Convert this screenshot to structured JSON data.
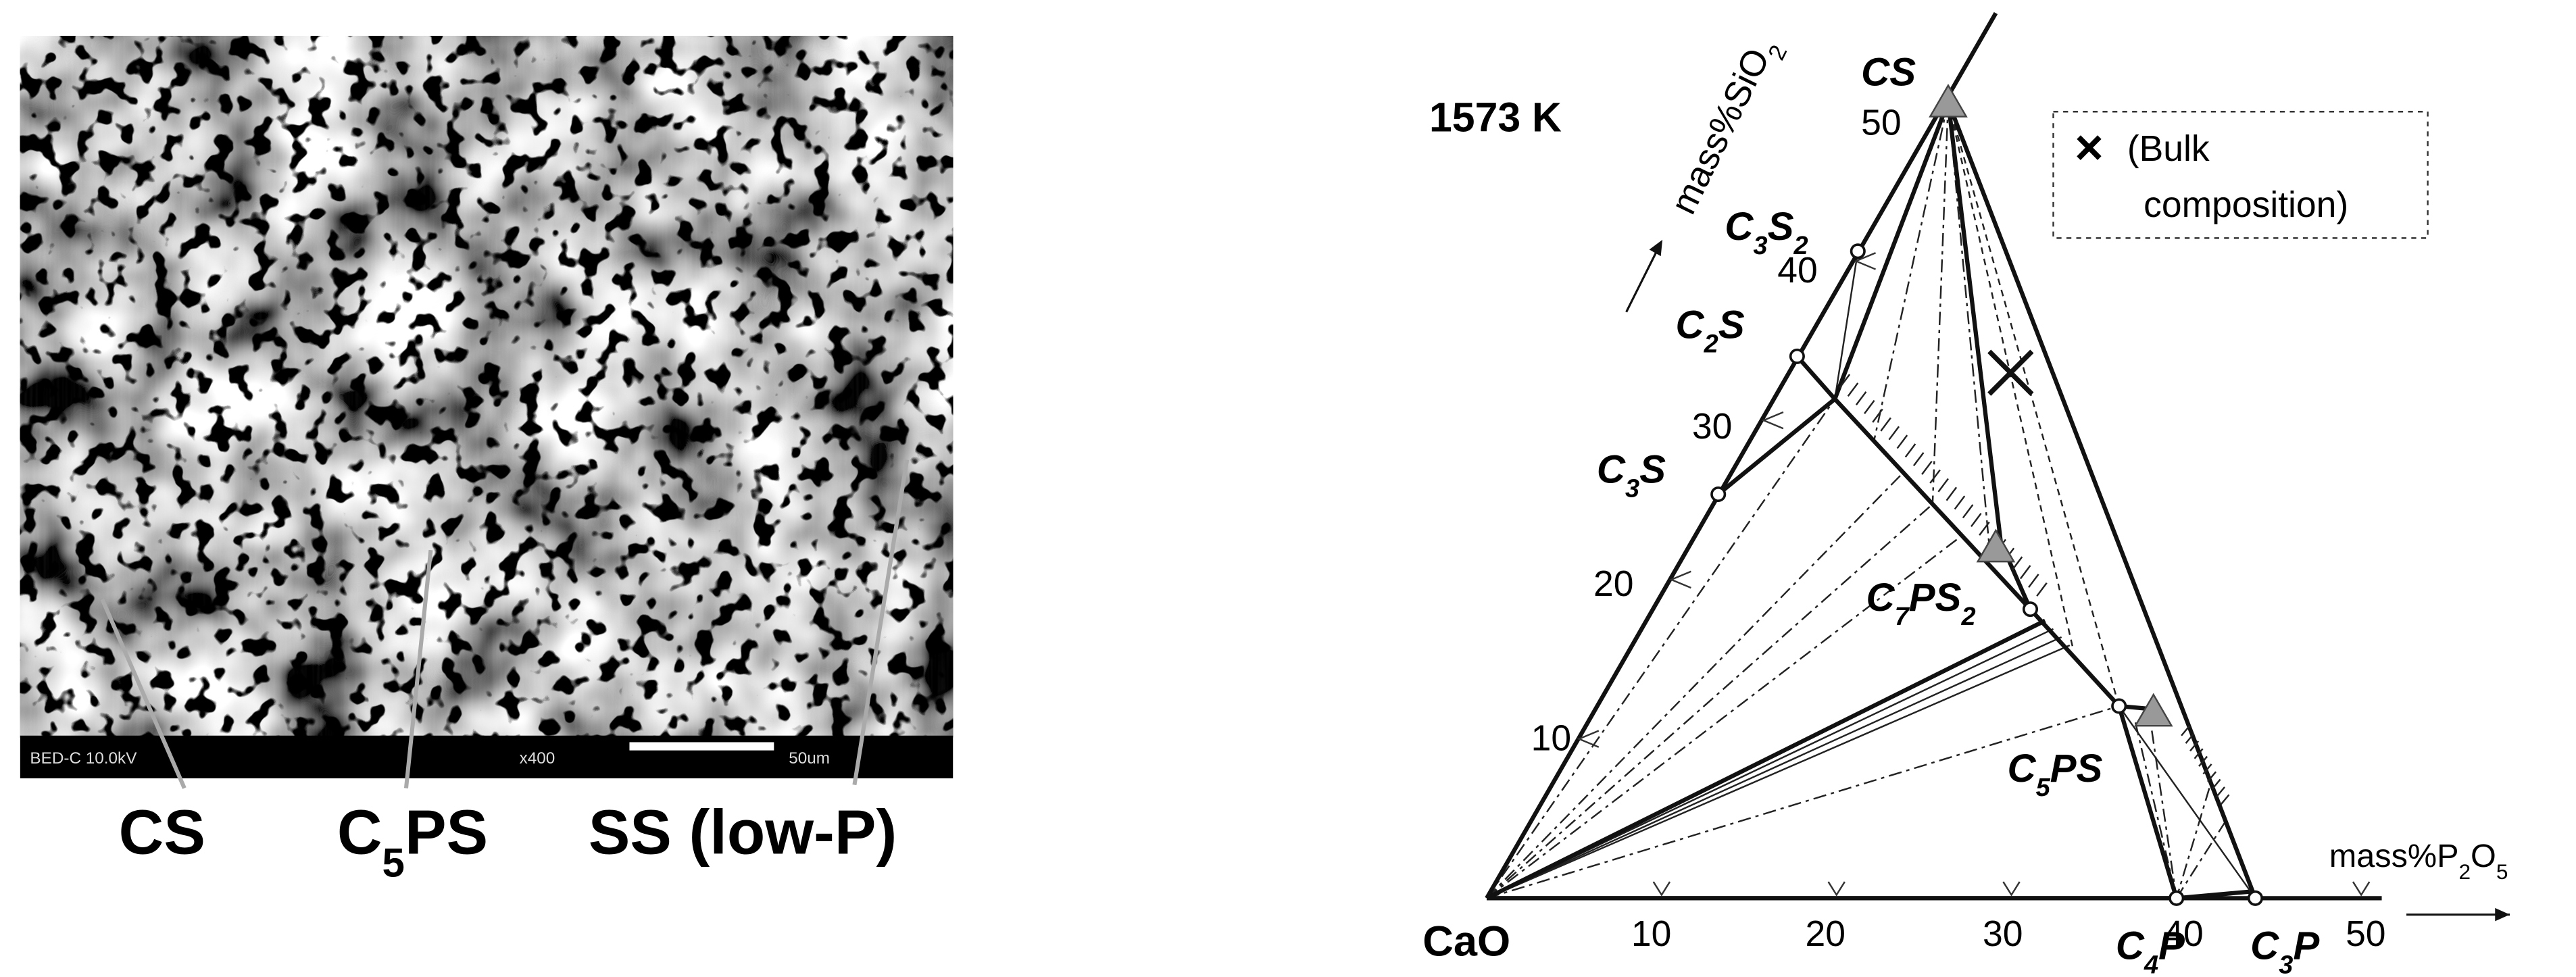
{
  "micrograph": {
    "info_bar": {
      "left": "BED-C 10.0kV",
      "magnification": "x400",
      "scale": "50um"
    },
    "labels": [
      {
        "parts": [
          "CS"
        ]
      },
      {
        "parts": [
          "C",
          "5",
          "PS"
        ]
      },
      {
        "parts": [
          "SS (low-P)"
        ]
      }
    ]
  },
  "phase_diagram": {
    "temperature": "1573 K",
    "sio2_axis": {
      "label": [
        "mass%SiO",
        "2"
      ],
      "ticks": [
        "10",
        "20",
        "30",
        "40",
        "50"
      ]
    },
    "p2o5_axis": {
      "label": [
        "mass%P",
        "2",
        "O",
        "5"
      ],
      "ticks": [
        "10",
        "20",
        "30",
        "40",
        "50"
      ]
    },
    "origin": "CaO",
    "phases": [
      {
        "parts": [
          "CS"
        ]
      },
      {
        "parts": [
          "C",
          "3",
          "S",
          "2"
        ]
      },
      {
        "parts": [
          "C",
          "2",
          "S"
        ]
      },
      {
        "parts": [
          "C",
          "3",
          "S"
        ]
      },
      {
        "parts": [
          "C",
          "7",
          "PS",
          "2"
        ]
      },
      {
        "parts": [
          "C",
          "5",
          "PS"
        ]
      },
      {
        "parts": [
          "C",
          "4",
          "P"
        ]
      },
      {
        "parts": [
          "C",
          "3",
          "P"
        ]
      }
    ],
    "legend": {
      "symbol": "×",
      "text": [
        "(Bulk",
        "composition)"
      ]
    }
  }
}
